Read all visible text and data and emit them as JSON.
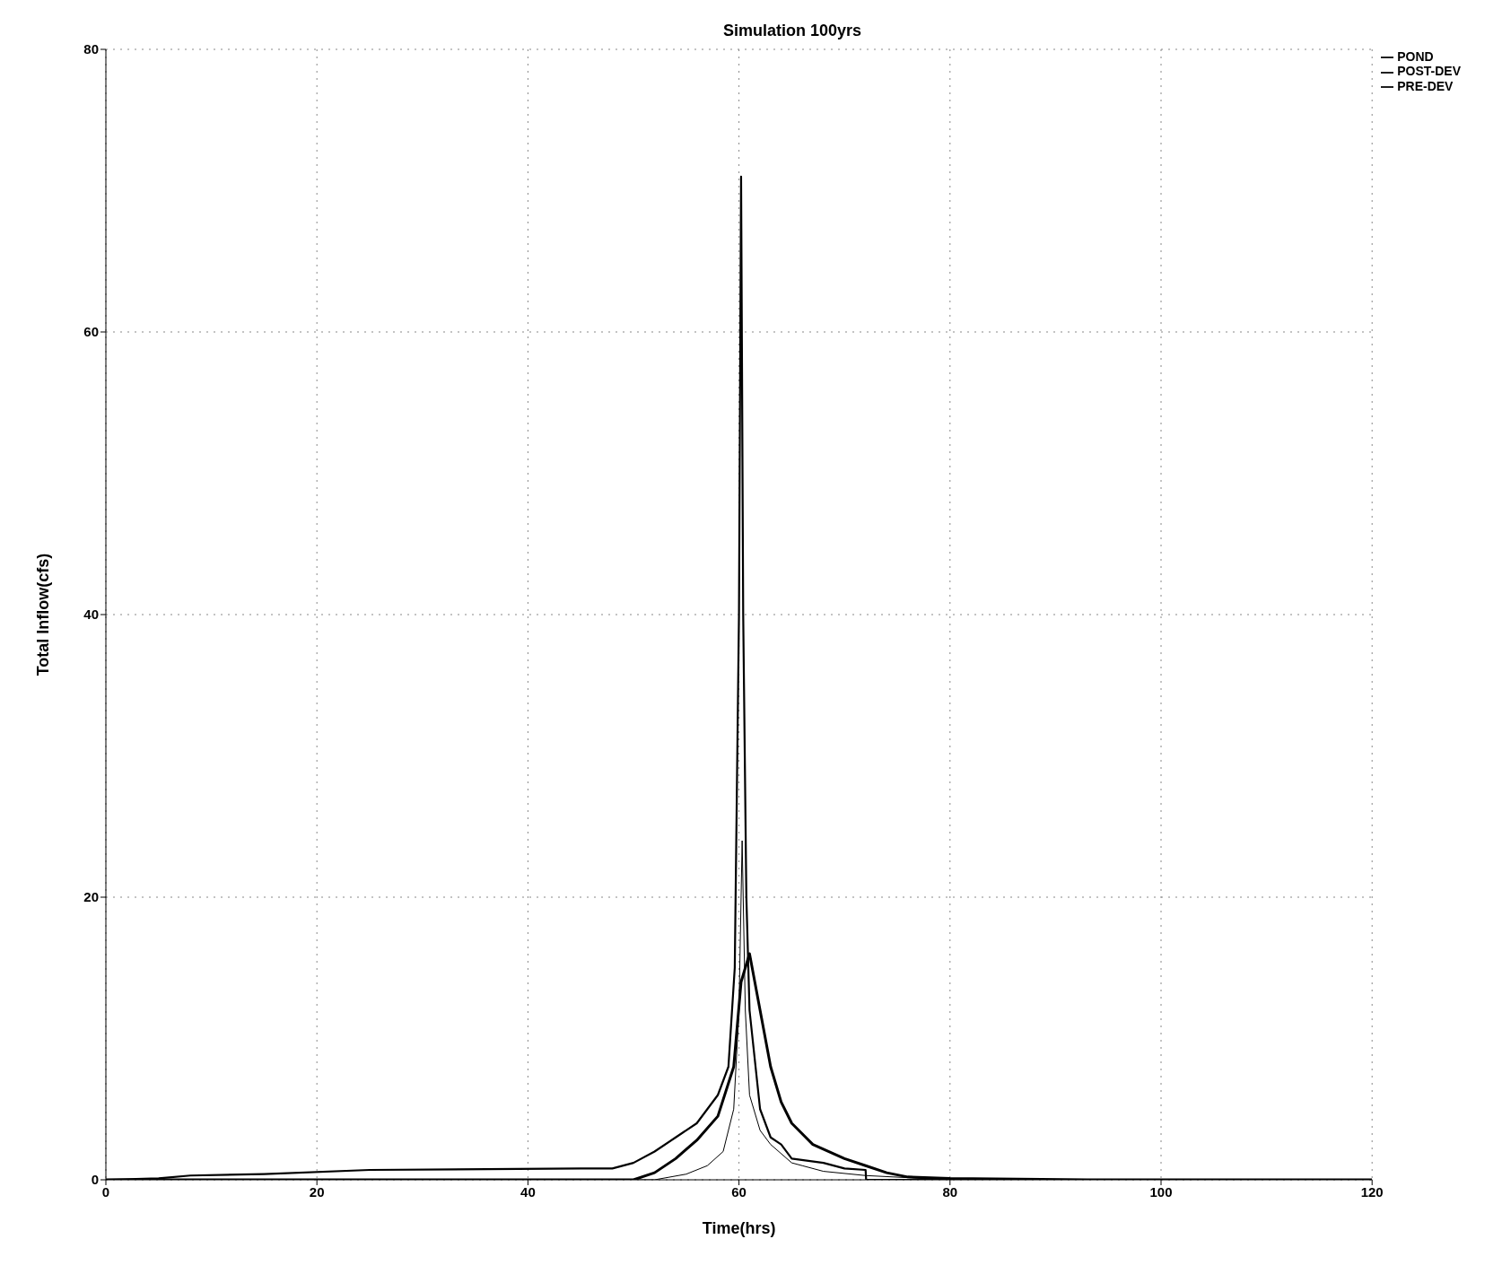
{
  "chart_data": {
    "type": "line",
    "title": "Simulation 100yrs",
    "xlabel": "Time(hrs)",
    "ylabel": "Total Inflow(cfs)",
    "xlim": [
      0,
      120
    ],
    "ylim": [
      0,
      80
    ],
    "xticks": [
      0,
      20,
      40,
      60,
      80,
      100,
      120
    ],
    "yticks": [
      0,
      20,
      40,
      60,
      80
    ],
    "grid": true,
    "legend": "top right",
    "marker": "none",
    "line_style": "solid",
    "series": [
      {
        "name": "POND",
        "color": "#000000",
        "x": [
          0,
          50,
          52,
          54,
          56,
          58,
          59.5,
          60.2,
          61,
          62,
          63,
          64,
          65,
          67,
          70,
          72,
          74,
          76,
          80,
          93,
          120
        ],
        "values": [
          0,
          0,
          0.5,
          1.5,
          2.8,
          4.5,
          8,
          14,
          16,
          12,
          8,
          5.5,
          4,
          2.5,
          1.5,
          1,
          0.5,
          0.2,
          0.1,
          0,
          0
        ]
      },
      {
        "name": "POST-DEV",
        "color": "#000000",
        "x": [
          0,
          5,
          8,
          15,
          25,
          45,
          48,
          50,
          52,
          54,
          56,
          58,
          59,
          59.6,
          60,
          60.2,
          60.4,
          60.7,
          61,
          62,
          63,
          64,
          65,
          68,
          70,
          72,
          72.05,
          80,
          120
        ],
        "values": [
          0,
          0.1,
          0.3,
          0.4,
          0.7,
          0.8,
          0.8,
          1.2,
          2,
          3,
          4,
          6,
          8,
          15,
          40,
          71,
          40,
          20,
          12,
          5,
          3,
          2.5,
          1.5,
          1.2,
          0.8,
          0.7,
          0,
          0,
          0
        ]
      },
      {
        "name": "PRE-DEV",
        "color": "#000000",
        "x": [
          0,
          52,
          55,
          57,
          58.5,
          59.5,
          60,
          60.3,
          60.6,
          61,
          62,
          63,
          65,
          66,
          68,
          72,
          80,
          120
        ],
        "values": [
          0,
          0,
          0.4,
          1,
          2,
          5,
          12,
          24,
          12,
          6,
          3.5,
          2.5,
          1.2,
          1,
          0.6,
          0.3,
          0,
          0
        ]
      }
    ]
  }
}
